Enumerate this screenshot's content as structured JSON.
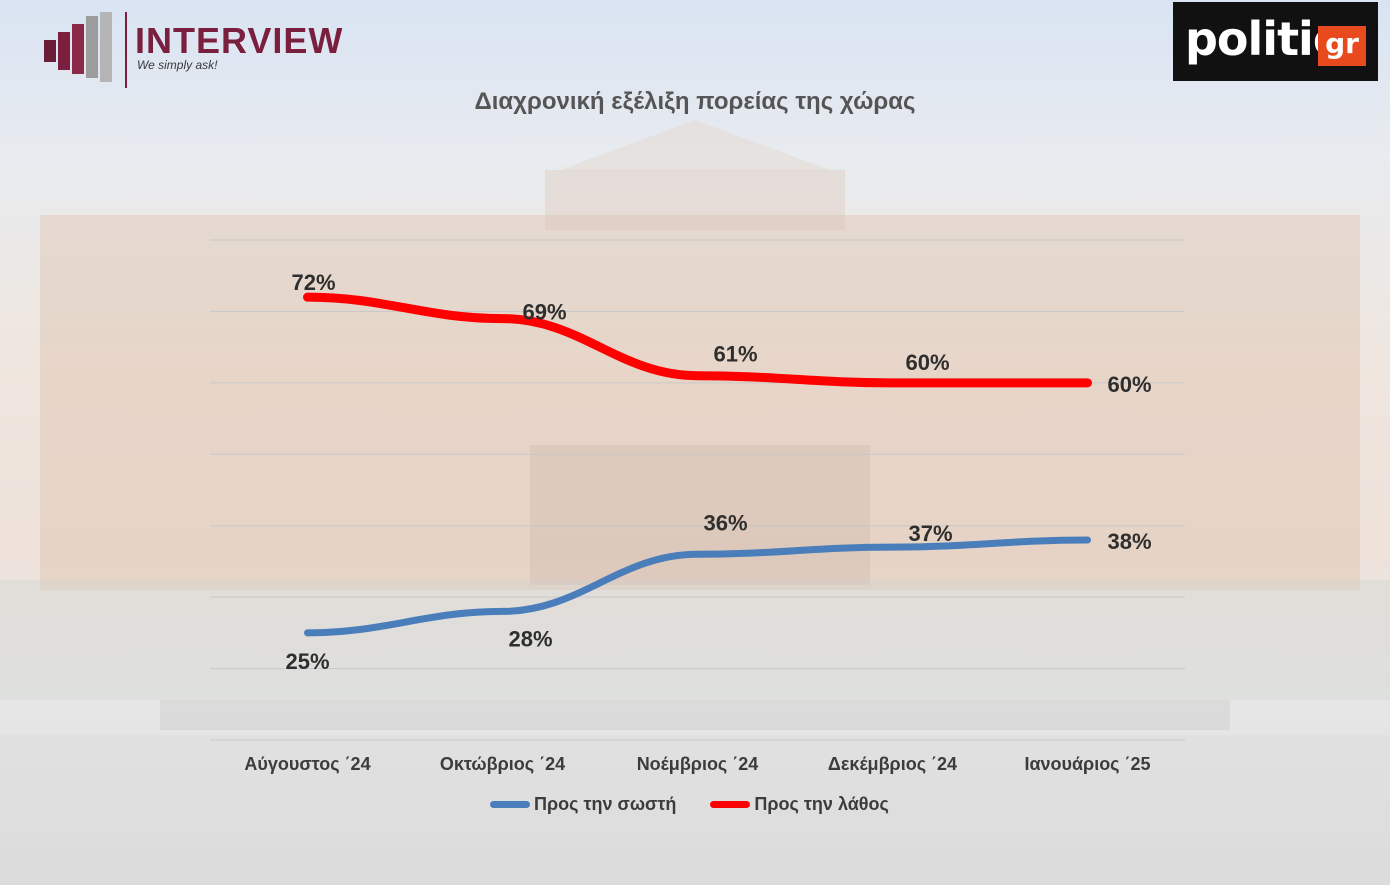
{
  "header": {
    "left_logo": {
      "brand": "INTERVIEW",
      "tagline": "We simply ask!"
    },
    "right_logo": {
      "word": "politic",
      "suffix": "gr"
    }
  },
  "colors": {
    "right": "#4a7ebb",
    "wrong": "#ff0000",
    "brand": "#7a1f3d"
  },
  "chart_data": {
    "type": "line",
    "title": "Διαχρονική εξέλιξη πορείας της χώρας",
    "categories": [
      "Αύγουστος ΄24",
      "Οκτώβριος ΄24",
      "Νοέμβριος ΄24",
      "Δεκέμβριος ΄24",
      "Ιανουάριος ΄25"
    ],
    "series": [
      {
        "name": "Προς την σωστή",
        "values": [
          25,
          28,
          36,
          37,
          38
        ],
        "labels": [
          "25%",
          "28%",
          "36%",
          "37%",
          "38%"
        ],
        "color": "#4a7ebb"
      },
      {
        "name": "Προς την λάθος",
        "values": [
          72,
          69,
          61,
          60,
          60
        ],
        "labels": [
          "72%",
          "69%",
          "61%",
          "60%",
          "60%"
        ],
        "color": "#ff0000"
      }
    ],
    "ylim": [
      10,
      80
    ],
    "grid": true,
    "legend": "bottom"
  }
}
